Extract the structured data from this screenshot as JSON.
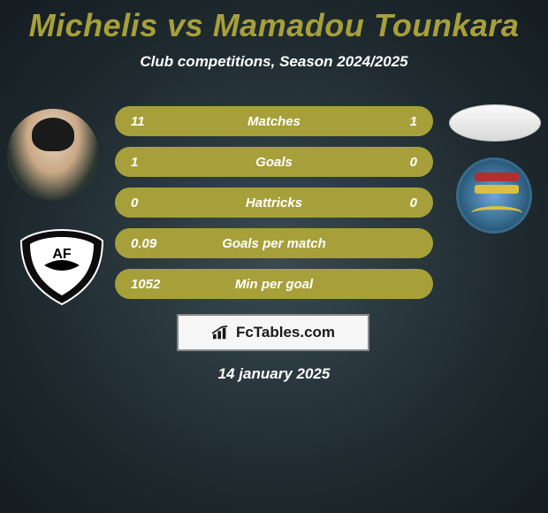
{
  "title": {
    "player1": "Michelis",
    "vs": " vs ",
    "player2": "Mamadou Tounkara",
    "color": "#a7a03a"
  },
  "subtitle": "Club competitions, Season 2024/2025",
  "stats": {
    "row_bg": "#a7a03a",
    "text_color": "#ffffff",
    "fontsize": 15,
    "rows": [
      {
        "left": "11",
        "label": "Matches",
        "right": "1"
      },
      {
        "left": "1",
        "label": "Goals",
        "right": "0"
      },
      {
        "left": "0",
        "label": "Hattricks",
        "right": "0"
      },
      {
        "left": "0.09",
        "label": "Goals per match",
        "right": ""
      },
      {
        "left": "1052",
        "label": "Min per goal",
        "right": ""
      }
    ]
  },
  "watermark": {
    "text": "FcTables.com"
  },
  "date": "14 january 2025",
  "colors": {
    "bg_center": "#3a4a52",
    "bg_edge": "#141c20",
    "accent": "#a7a03a",
    "text": "#ffffff"
  }
}
